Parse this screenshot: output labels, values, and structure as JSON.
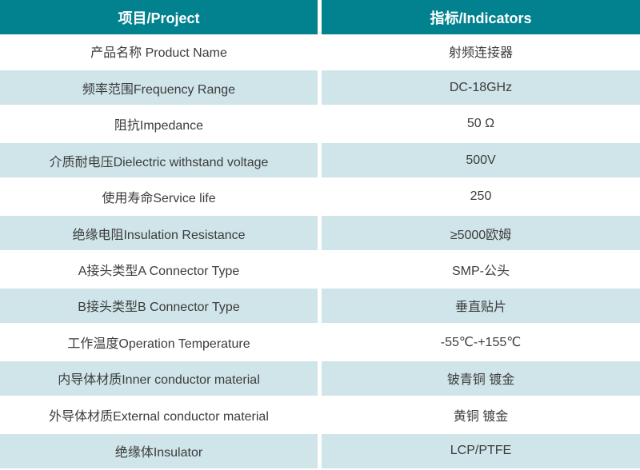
{
  "table": {
    "header": {
      "project_label": "项目/Project",
      "indicators_label": "指标/Indicators"
    },
    "rows": [
      {
        "project": "产品名称 Product Name",
        "indicator": "射频连接器"
      },
      {
        "project": "频率范围Frequency Range",
        "indicator": "DC-18GHz"
      },
      {
        "project": "阻抗Impedance",
        "indicator": "50 Ω"
      },
      {
        "project": "介质耐电压Dielectric withstand voltage",
        "indicator": "500V"
      },
      {
        "project": "使用寿命Service life",
        "indicator": "250"
      },
      {
        "project": "绝缘电阻Insulation Resistance",
        "indicator": "≥5000欧姆"
      },
      {
        "project": "A接头类型A Connector Type",
        "indicator": "SMP-公头"
      },
      {
        "project": "B接头类型B Connector Type",
        "indicator": "垂直贴片"
      },
      {
        "project": "工作温度Operation Temperature",
        "indicator": "-55℃-+155℃"
      },
      {
        "project": "内导体材质Inner conductor material",
        "indicator": "铍青铜 镀金"
      },
      {
        "project": "外导体材质External conductor material",
        "indicator": "黄铜 镀金"
      },
      {
        "project": "绝缘体Insulator",
        "indicator": "LCP/PTFE"
      }
    ],
    "colors": {
      "header_bg": "#02818F",
      "row_alt_bg": "#CFE5E9",
      "text": "#3C3C3C",
      "header_text": "#FFFFFF"
    }
  }
}
